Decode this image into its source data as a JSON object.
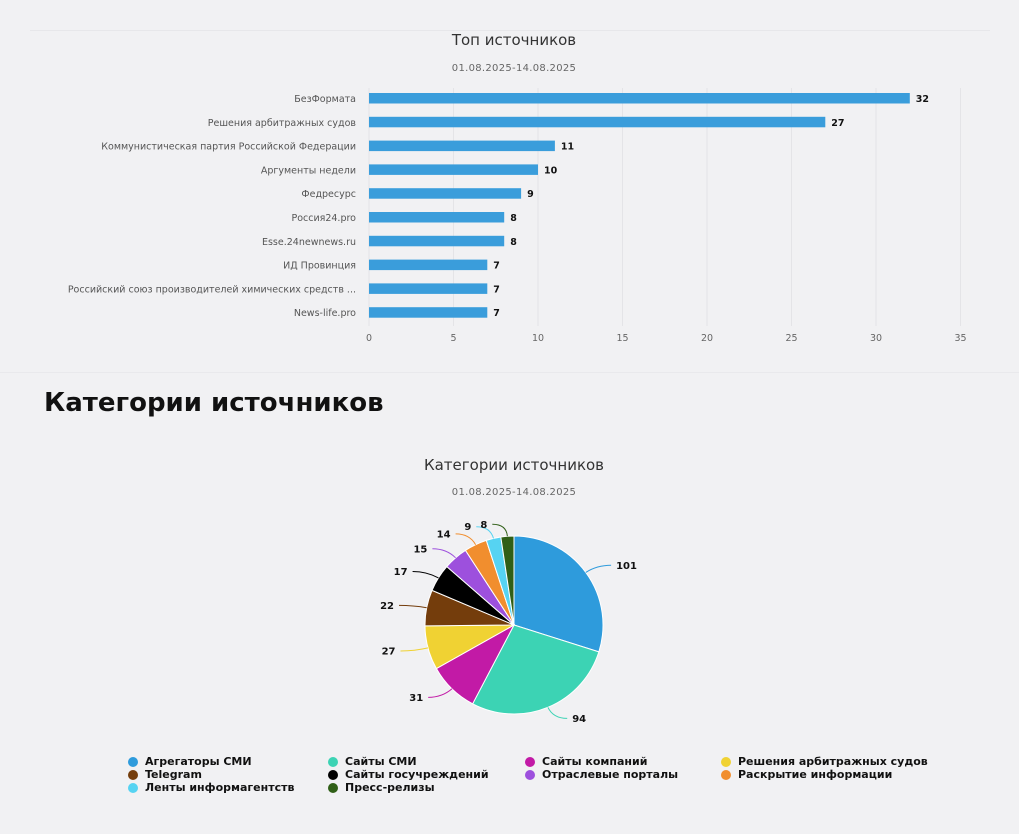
{
  "section": {
    "heading": "Категории источников"
  },
  "chart_data": [
    {
      "type": "bar",
      "orientation": "horizontal",
      "title": "Топ источников",
      "subtitle": "01.08.2025-14.08.2025",
      "categories": [
        "БезФормата",
        "Решения арбитражных судов",
        "Коммунистическая партия Российской Федерации",
        "Аргументы недели",
        "Федресурс",
        "Россия24.pro",
        "Esse.24newnews.ru",
        "ИД Провинция",
        "Российский союз производителей химических средств ...",
        "News-life.pro"
      ],
      "values": [
        32,
        27,
        11,
        10,
        9,
        8,
        8,
        7,
        7,
        7
      ],
      "xlim": [
        0,
        35
      ],
      "xticks": [
        0,
        5,
        10,
        15,
        20,
        25,
        30,
        35
      ],
      "xlabel": "",
      "ylabel": "",
      "grid": true,
      "data_labels": true,
      "color": "#3a9ddb"
    },
    {
      "type": "pie",
      "title": "Категории источников",
      "subtitle": "01.08.2025-14.08.2025",
      "data_labels": true,
      "legend_position": "bottom",
      "slices": [
        {
          "label": "Агрегаторы СМИ",
          "value": 101,
          "color": "#2e9bdc"
        },
        {
          "label": "Сайты СМИ",
          "value": 94,
          "color": "#3cd3b4"
        },
        {
          "label": "Сайты компаний",
          "value": 31,
          "color": "#c21aa6"
        },
        {
          "label": "Решения арбитражных судов",
          "value": 27,
          "color": "#f0d233"
        },
        {
          "label": "Telegram",
          "value": 22,
          "color": "#743d0c"
        },
        {
          "label": "Сайты госучреждений",
          "value": 17,
          "color": "#000000"
        },
        {
          "label": "Отраслевые порталы",
          "value": 15,
          "color": "#9d50dd"
        },
        {
          "label": "Раскрытие информации",
          "value": 14,
          "color": "#f18e2e"
        },
        {
          "label": "Ленты информагентств",
          "value": 9,
          "color": "#56d3f2"
        },
        {
          "label": "Пресс-релизы",
          "value": 8,
          "color": "#305f17"
        }
      ]
    }
  ]
}
